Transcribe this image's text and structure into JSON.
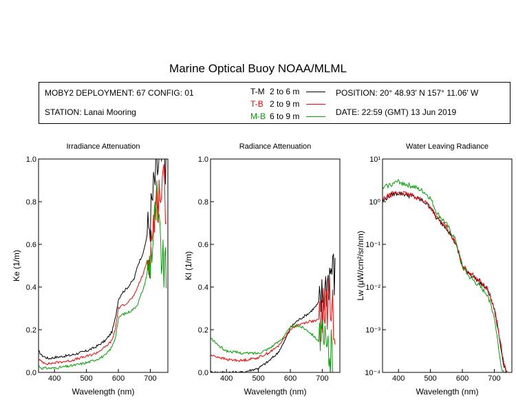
{
  "title": "Marine Optical Buoy NOAA/MLML",
  "info": {
    "deployment": "MOBY2 DEPLOYMENT: 67 CONFIG: 01",
    "station": "STATION: Lanai Mooring",
    "position": "POSITION: 20° 48.93' N   157° 11.06' W",
    "date": "DATE: 22:59 (GMT) 13 Jun 2019"
  },
  "legend": [
    {
      "label": "T-M",
      "range": "2 to 6  m",
      "color": "#000000"
    },
    {
      "label": "T-B",
      "range": "2 to 9  m",
      "color": "#ff0000"
    },
    {
      "label": "M-B",
      "range": "6 to 9  m",
      "color": "#00a000"
    }
  ],
  "chart_data": [
    {
      "type": "line",
      "title": "Irradiance Attenuation",
      "xlabel": "Wavelength (nm)",
      "ylabel": "Ke  (1/m)",
      "xlim": [
        350,
        755
      ],
      "ylim": [
        0,
        1.0
      ],
      "yscale": "linear",
      "xticks": [
        "400",
        "500",
        "600",
        "700"
      ],
      "yticks": [
        "0.0",
        "0.2",
        "0.4",
        "0.6",
        "0.8",
        "1.0"
      ],
      "series": [
        {
          "name": "T-M",
          "color": "#000000",
          "x": [
            350,
            360,
            380,
            400,
            450,
            500,
            530,
            560,
            580,
            590,
            600,
            610,
            630,
            650,
            660,
            680,
            700,
            710,
            720,
            730,
            740,
            750
          ],
          "y": [
            0.1,
            0.08,
            0.065,
            0.07,
            0.08,
            0.1,
            0.12,
            0.15,
            0.19,
            0.25,
            0.34,
            0.37,
            0.4,
            0.44,
            0.5,
            0.57,
            0.72,
            0.85,
            0.95,
            0.98,
            1.0,
            1.0
          ]
        },
        {
          "name": "T-B",
          "color": "#ff0000",
          "x": [
            350,
            360,
            380,
            400,
            450,
            500,
            530,
            560,
            580,
            590,
            600,
            610,
            630,
            650,
            660,
            680,
            700,
            710,
            720,
            730,
            740,
            750
          ],
          "y": [
            0.06,
            0.05,
            0.04,
            0.045,
            0.055,
            0.075,
            0.09,
            0.12,
            0.15,
            0.2,
            0.3,
            0.31,
            0.33,
            0.36,
            0.4,
            0.47,
            0.58,
            0.7,
            0.8,
            0.85,
            0.88,
            0.8
          ]
        },
        {
          "name": "M-B",
          "color": "#00a000",
          "x": [
            350,
            360,
            380,
            400,
            450,
            500,
            530,
            560,
            580,
            590,
            600,
            610,
            630,
            650,
            660,
            680,
            700,
            710,
            720,
            730,
            740,
            750
          ],
          "y": [
            0.03,
            0.02,
            0.02,
            0.02,
            0.03,
            0.045,
            0.06,
            0.08,
            0.12,
            0.16,
            0.25,
            0.27,
            0.28,
            0.3,
            0.32,
            0.4,
            0.53,
            0.65,
            0.8,
            0.6,
            0.5,
            0.45
          ]
        }
      ]
    },
    {
      "type": "line",
      "title": "Radiance Attenuation",
      "xlabel": "Wavelength (nm)",
      "ylabel": "Kl  (1/m)",
      "xlim": [
        350,
        755
      ],
      "ylim": [
        0,
        1.0
      ],
      "yscale": "linear",
      "xticks": [
        "400",
        "500",
        "600",
        "700"
      ],
      "yticks": [
        "0.0",
        "0.2",
        "0.4",
        "0.6",
        "0.8",
        "1.0"
      ],
      "series": [
        {
          "name": "T-M",
          "color": "#000000",
          "x": [
            350,
            380,
            400,
            450,
            500,
            530,
            560,
            580,
            600,
            620,
            640,
            660,
            680,
            700,
            710,
            720,
            730,
            740
          ],
          "y": [
            0.0,
            0.0,
            0.0,
            0.0,
            0.02,
            0.05,
            0.09,
            0.14,
            0.21,
            0.24,
            0.26,
            0.28,
            0.31,
            0.35,
            0.4,
            0.45,
            0.5,
            0.45
          ]
        },
        {
          "name": "T-B",
          "color": "#ff0000",
          "x": [
            350,
            380,
            400,
            450,
            500,
            530,
            560,
            580,
            600,
            620,
            640,
            660,
            680,
            700,
            710,
            720,
            730,
            740
          ],
          "y": [
            0.08,
            0.07,
            0.06,
            0.055,
            0.07,
            0.09,
            0.12,
            0.16,
            0.2,
            0.22,
            0.23,
            0.24,
            0.24,
            0.26,
            0.3,
            0.33,
            0.3,
            0.25
          ]
        },
        {
          "name": "M-B",
          "color": "#00a000",
          "x": [
            350,
            380,
            400,
            450,
            500,
            530,
            560,
            580,
            600,
            620,
            640,
            660,
            680,
            700,
            710,
            720,
            730,
            740
          ],
          "y": [
            0.16,
            0.12,
            0.1,
            0.09,
            0.09,
            0.11,
            0.14,
            0.17,
            0.21,
            0.22,
            0.21,
            0.19,
            0.16,
            0.13,
            0.11,
            0.1,
            0.08,
            0.05
          ]
        }
      ]
    },
    {
      "type": "line",
      "title": "Water Leaving Radiance",
      "xlabel": "Wavelength (nm)",
      "ylabel": "Lw  (μW/cm²/sr/nm)",
      "xlim": [
        350,
        755
      ],
      "ylim": [
        0.0001,
        10
      ],
      "yscale": "log",
      "xticks": [
        "400",
        "500",
        "600",
        "700"
      ],
      "yticks": [
        "10⁻⁴",
        "10⁻³",
        "10⁻²",
        "10⁻¹",
        "10⁰",
        "10¹"
      ],
      "series": [
        {
          "name": "T-M",
          "color": "#000000",
          "x": [
            350,
            360,
            380,
            400,
            420,
            450,
            480,
            500,
            520,
            550,
            580,
            600,
            620,
            650,
            680,
            700,
            710,
            720,
            730,
            740
          ],
          "y": [
            1.0,
            1.2,
            1.5,
            1.6,
            1.5,
            1.3,
            1.0,
            0.75,
            0.4,
            0.25,
            0.1,
            0.03,
            0.022,
            0.014,
            0.0085,
            0.003,
            0.0012,
            0.0004,
            0.00015,
            0.0001
          ]
        },
        {
          "name": "T-B",
          "color": "#ff0000",
          "x": [
            350,
            360,
            380,
            400,
            420,
            450,
            480,
            500,
            520,
            550,
            580,
            600,
            620,
            650,
            680,
            700,
            710,
            720,
            730,
            740
          ],
          "y": [
            1.1,
            1.25,
            1.55,
            1.65,
            1.55,
            1.35,
            1.05,
            0.78,
            0.42,
            0.26,
            0.1,
            0.031,
            0.023,
            0.015,
            0.009,
            0.0032,
            0.0013,
            0.00045,
            0.00016,
            0.0001
          ]
        },
        {
          "name": "M-B",
          "color": "#00a000",
          "x": [
            350,
            360,
            380,
            400,
            420,
            450,
            480,
            500,
            520,
            550,
            580,
            600,
            620,
            650,
            680,
            700,
            710,
            720,
            730,
            740
          ],
          "y": [
            2.0,
            2.3,
            2.6,
            3.0,
            2.6,
            2.2,
            1.7,
            1.2,
            0.55,
            0.3,
            0.12,
            0.03,
            0.018,
            0.011,
            0.0065,
            0.002,
            0.0006,
            0.00015,
            0.0001,
            0.0001
          ]
        }
      ]
    }
  ]
}
